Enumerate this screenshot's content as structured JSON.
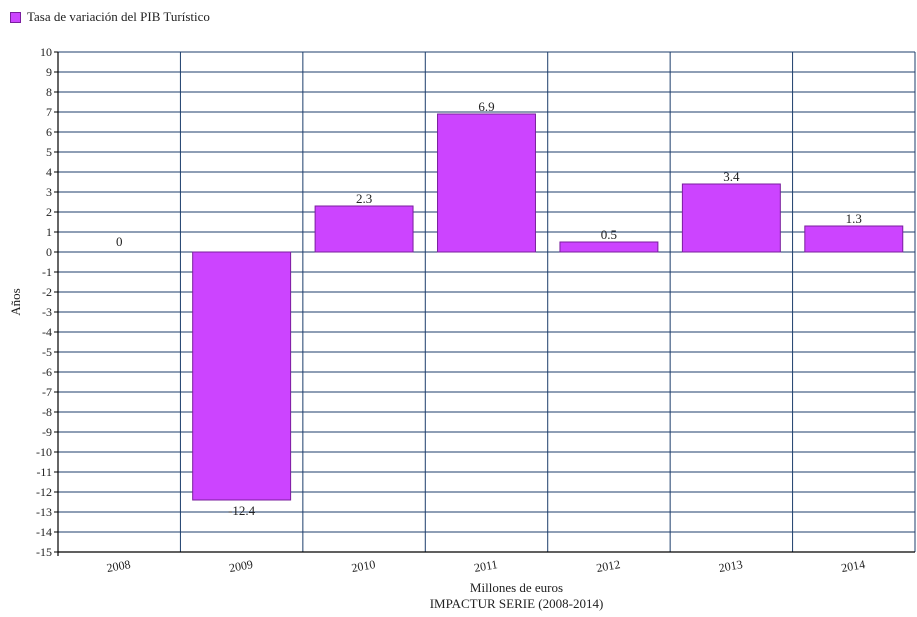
{
  "legend": {
    "label": "Tasa de variación del PIB Turístico",
    "color": "#cc44ff"
  },
  "chart_data": {
    "type": "bar",
    "categories": [
      "2008",
      "2009",
      "2010",
      "2011",
      "2012",
      "2013",
      "2014"
    ],
    "series": [
      {
        "name": "Tasa de variación del PIB Turístico",
        "values": [
          0,
          -12.4,
          2.3,
          6.9,
          0.5,
          3.4,
          1.3
        ],
        "labels": [
          "0",
          "-12.4",
          "2.3",
          "6.9",
          "0.5",
          "3.4",
          "1.3"
        ]
      }
    ],
    "ylim": [
      -15,
      10
    ],
    "yticks": [
      "10",
      "9",
      "8",
      "7",
      "6",
      "5",
      "4",
      "3",
      "2",
      "1",
      "0",
      "-1",
      "-2",
      "-3",
      "-4",
      "-5",
      "-6",
      "-7",
      "-8",
      "-9",
      "-10",
      "-11",
      "-12",
      "-13",
      "-14",
      "-15"
    ],
    "ylabel": "Años",
    "xlabel": "Millones de euros",
    "subtitle": "IMPACTUR SERIE (2008-2014)",
    "grid": true,
    "legend_position": "top-left",
    "colors": {
      "bar": "#cc44ff",
      "bar_edge": "#7a1e9e",
      "grid": "#1c3d6b"
    }
  }
}
